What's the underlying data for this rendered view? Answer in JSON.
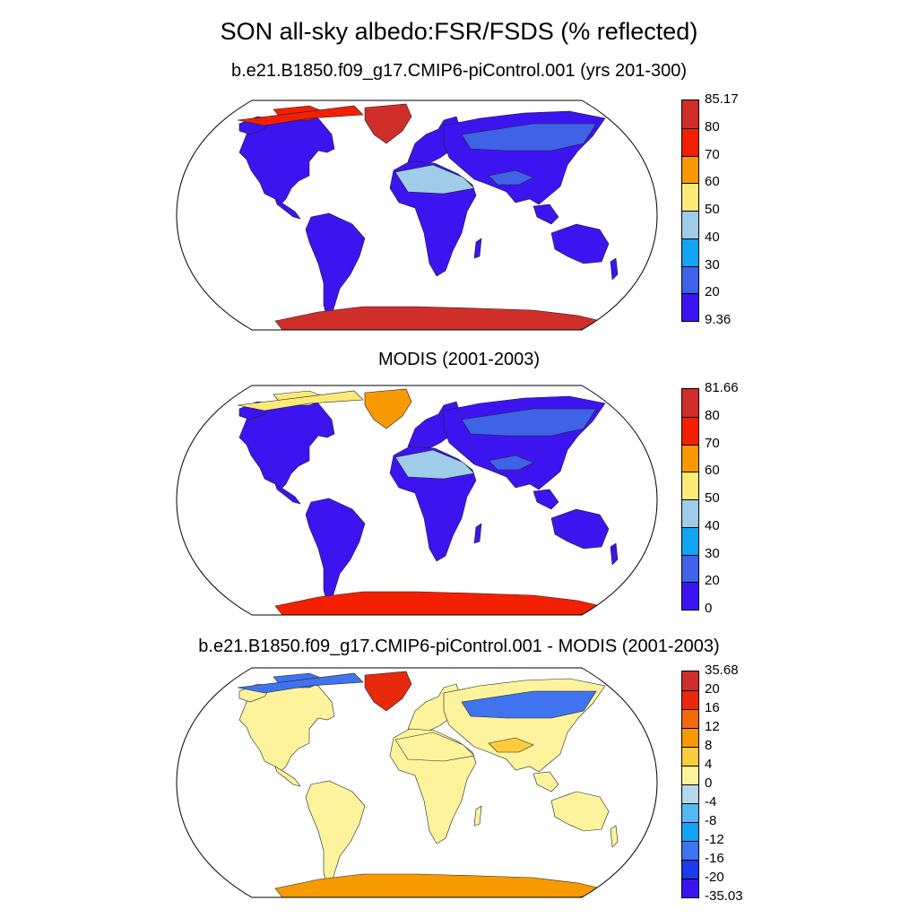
{
  "title": "SON all-sky albedo:FSR/FSDS (% reflected)",
  "panels": [
    {
      "id": "model",
      "title": "b.e21.B1850.f09_g17.CMIP6-piControl.001 (yrs 201-300)",
      "colorbar": {
        "colors": [
          "#3c14f0",
          "#3f62e6",
          "#12a4f5",
          "#9fcde9",
          "#fbea7a",
          "#f79a02",
          "#f32000",
          "#d02e2b"
        ],
        "labels": [
          "85.17",
          "80",
          "70",
          "60",
          "50",
          "40",
          "30",
          "20",
          "9.36"
        ]
      },
      "fills": {
        "land": "#3c14f0",
        "sahara": "#9fcde9",
        "greenland": "#d02e2b",
        "antarctica": "#d02e2b",
        "arctic": "#f32000",
        "siberia": "#3f62e6",
        "tibet": "#3f62e6"
      }
    },
    {
      "id": "obs",
      "title": "MODIS (2001-2003)",
      "colorbar": {
        "colors": [
          "#3c14f0",
          "#3f62e6",
          "#12a4f5",
          "#9fcde9",
          "#fbea7a",
          "#f79a02",
          "#f32000",
          "#d02e2b"
        ],
        "labels": [
          "81.66",
          "80",
          "70",
          "60",
          "50",
          "40",
          "30",
          "20",
          "0"
        ]
      },
      "fills": {
        "land": "#3c14f0",
        "sahara": "#9fcde9",
        "greenland": "#f79a02",
        "antarctica": "#f32000",
        "arctic": "#fbea7a",
        "siberia": "#3f62e6",
        "tibet": "#3f62e6"
      }
    },
    {
      "id": "diff",
      "title": "b.e21.B1850.f09_g17.CMIP6-piControl.001 - MODIS (2001-2003)",
      "colorbar": {
        "colors": [
          "#3c14f0",
          "#1b3be8",
          "#3f74ee",
          "#12a4f5",
          "#56b8f3",
          "#b5d9ea",
          "#fdf39c",
          "#fbcc3d",
          "#f79a02",
          "#f26a0a",
          "#e8290c",
          "#d02e2b"
        ],
        "labels": [
          "35.68",
          "20",
          "16",
          "12",
          "8",
          "4",
          "0",
          "-4",
          "-8",
          "-12",
          "-16",
          "-20",
          "-35.03"
        ]
      },
      "fills": {
        "land": "#fdf39c",
        "sahara": "#fdf39c",
        "greenland": "#e8290c",
        "antarctica": "#f79a02",
        "arctic": "#3f74ee",
        "siberia": "#3f74ee",
        "tibet": "#fbcc3d"
      }
    }
  ]
}
